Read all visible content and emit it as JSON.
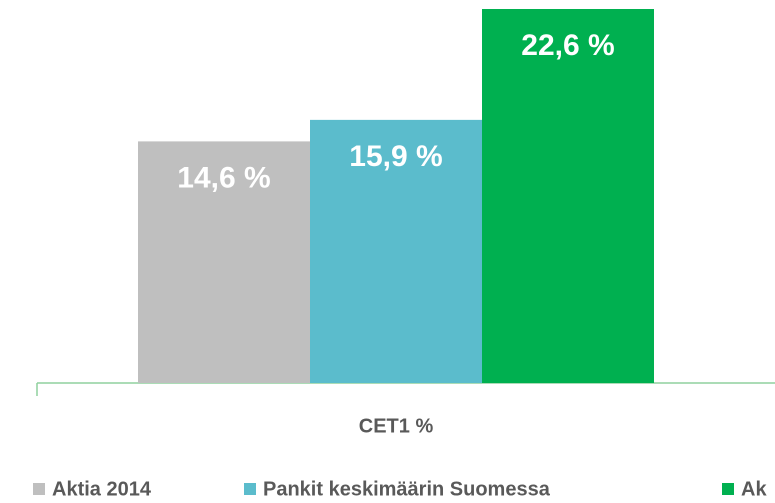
{
  "chart_data": {
    "type": "bar",
    "categories": [
      "CET1 %"
    ],
    "series": [
      {
        "name": "Aktia 2014",
        "color": "#bfbfbf",
        "values": [
          14.6
        ],
        "value_labels": [
          "14,6 %"
        ]
      },
      {
        "name": "Pankit keskimäärin Suomessa",
        "color": "#5bbccc",
        "values": [
          15.9
        ],
        "value_labels": [
          "15,9 %"
        ]
      },
      {
        "name": "Ak",
        "color": "#00b050",
        "values": [
          22.6
        ],
        "value_labels": [
          "22,6 %"
        ]
      }
    ]
  }
}
